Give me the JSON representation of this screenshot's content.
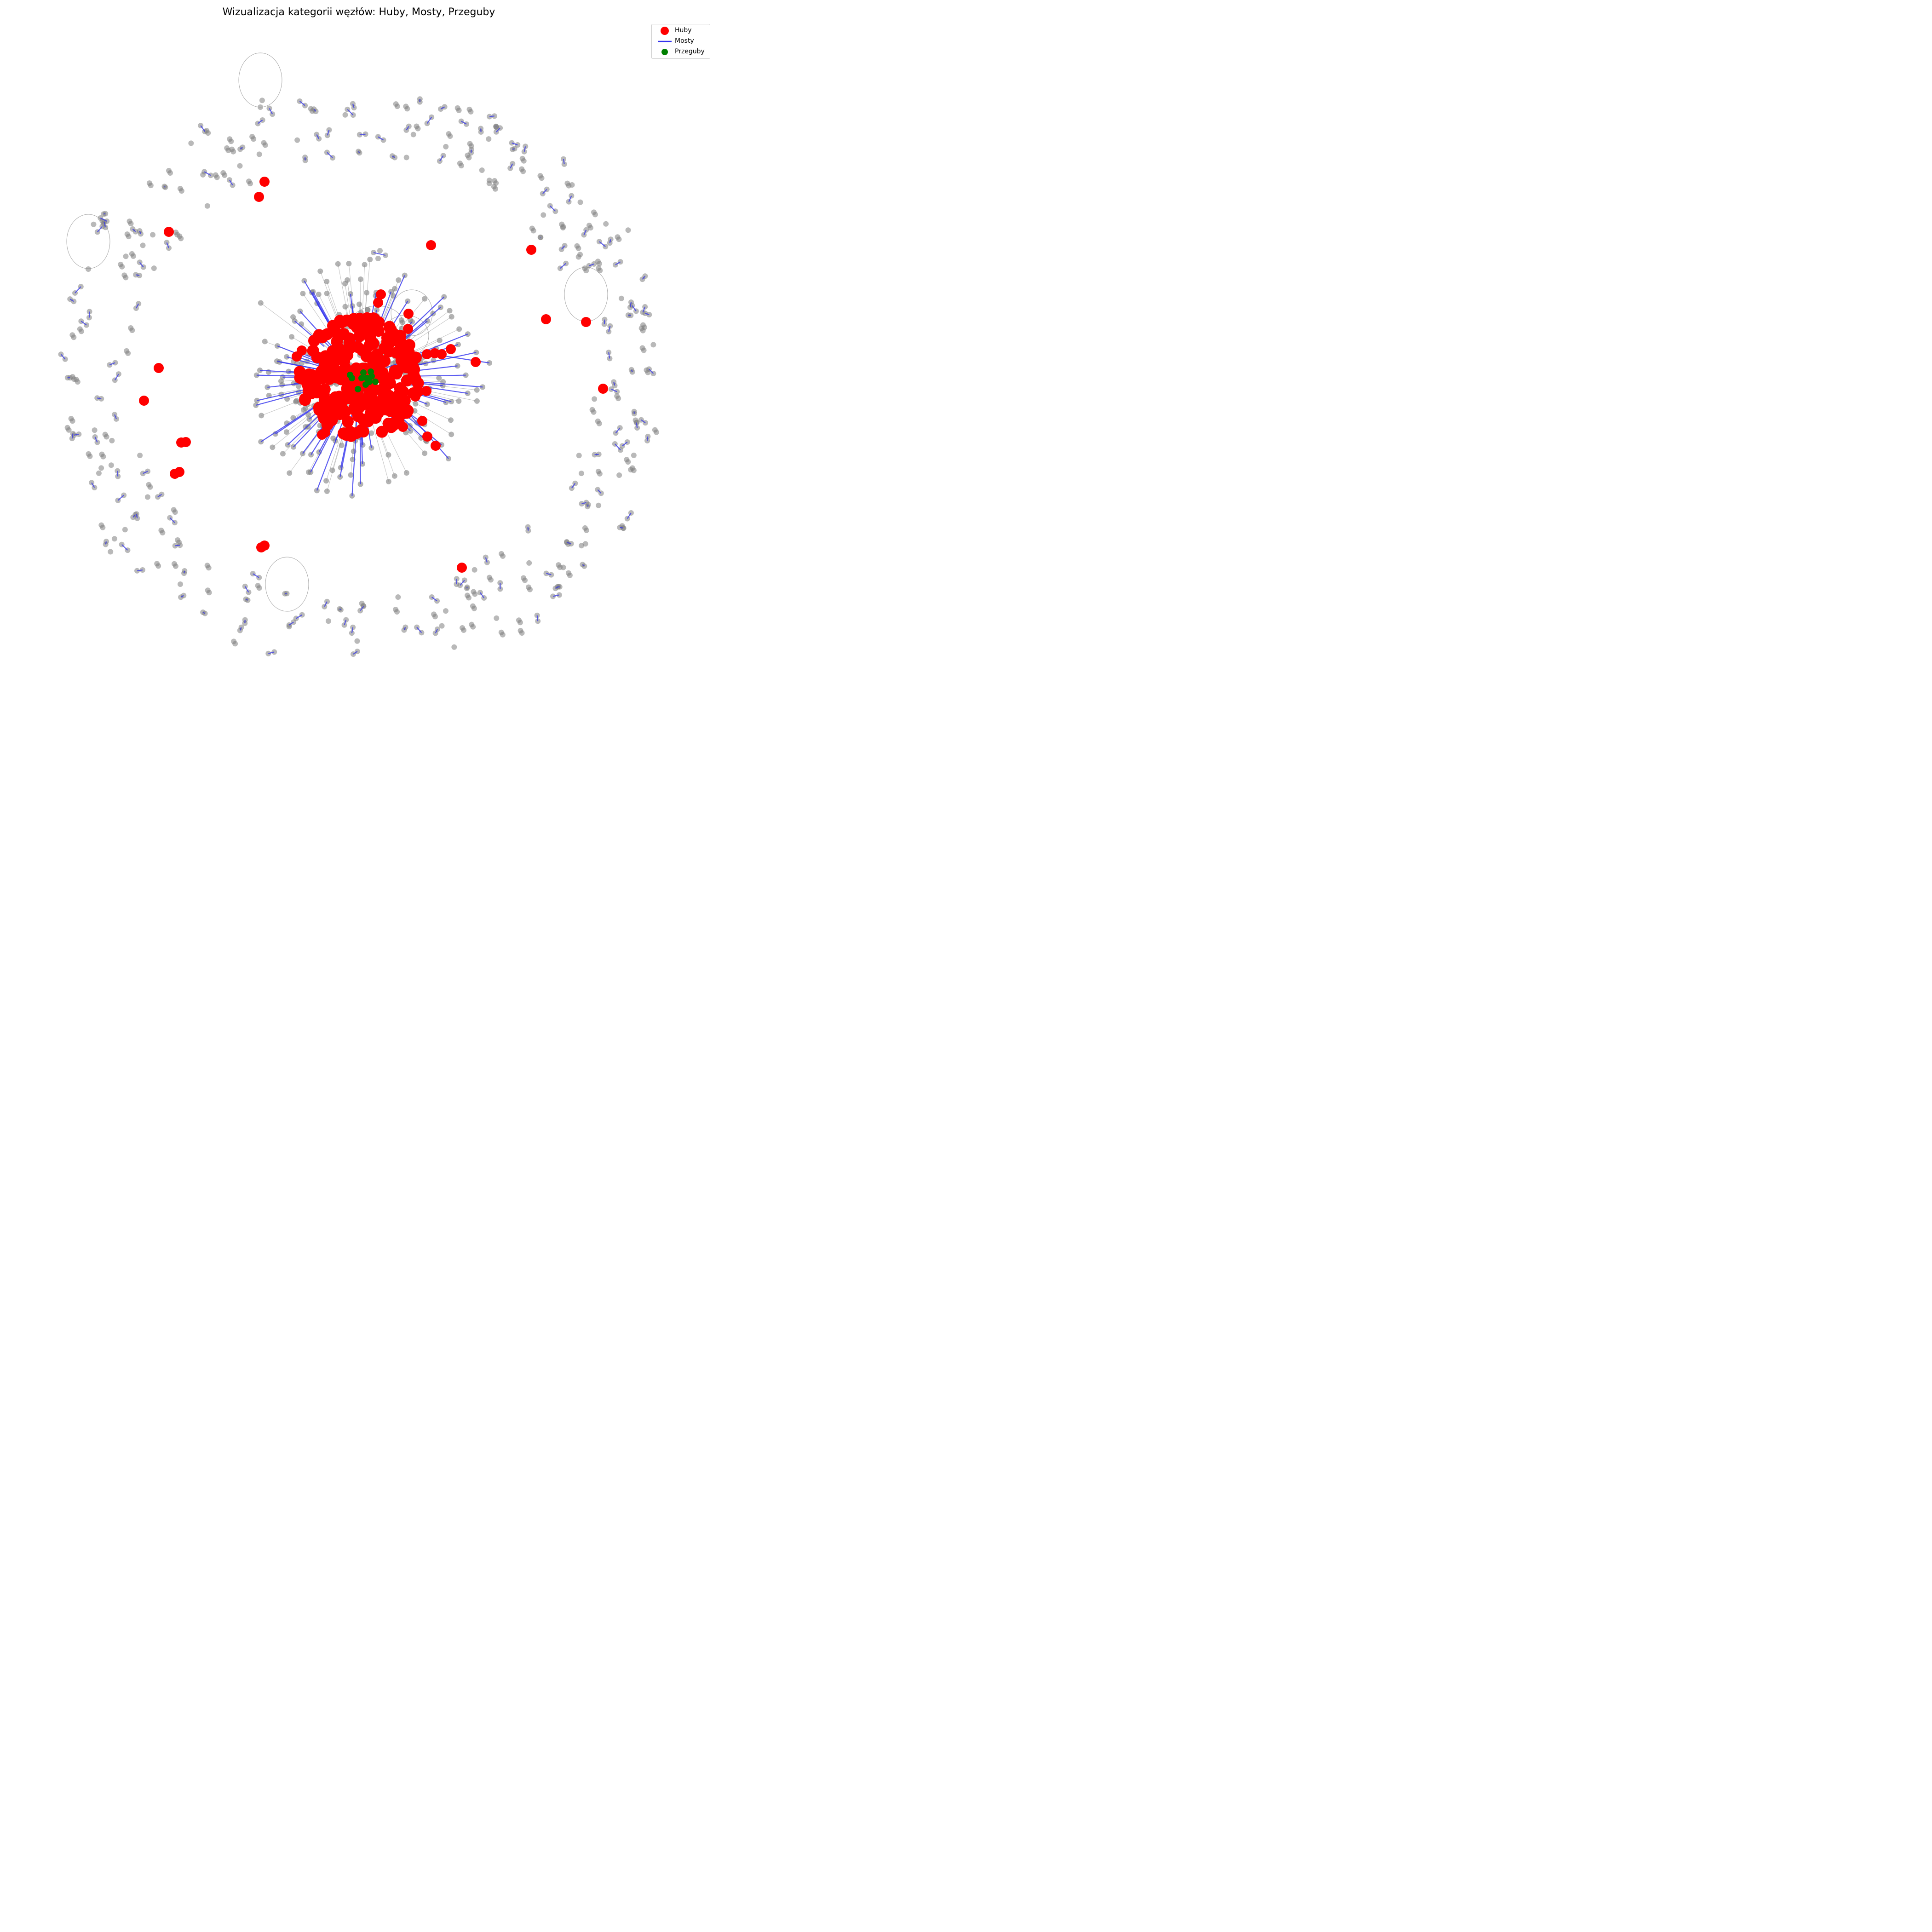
{
  "title": "Wizualizacja kategorii węzłów: Huby, Mosty, Przeguby",
  "legend": {
    "items": [
      {
        "label": "Huby",
        "color": "#ff0000",
        "marker": "large-circle"
      },
      {
        "label": "Mosty",
        "color": "#3333ee",
        "marker": "line"
      },
      {
        "label": "Przeguby",
        "color": "#008000",
        "marker": "small-circle"
      }
    ],
    "placement": "top-right"
  },
  "colors": {
    "node": "#808080",
    "hub": "#ff0000",
    "bridge": "#3333ee",
    "articulation": "#008000",
    "edge": "#999999"
  },
  "chart_data": {
    "type": "network",
    "layout": "central dense component surrounded by a ring of small disconnected components",
    "categories": [
      "Huby",
      "Mosty",
      "Przeguby"
    ],
    "outer_hub_count": 22
  }
}
